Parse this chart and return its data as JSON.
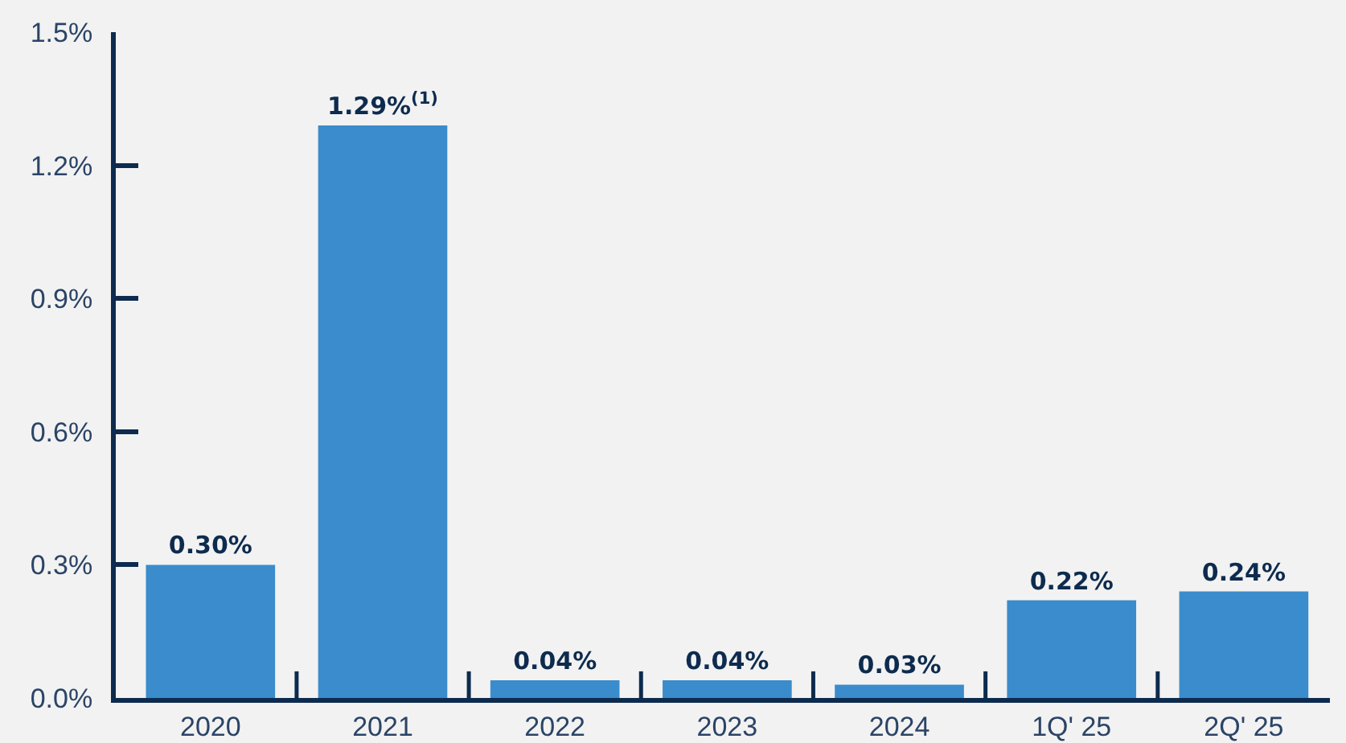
{
  "chart_data": {
    "type": "bar",
    "categories": [
      "2020",
      "2021",
      "2022",
      "2023",
      "2024",
      "1Q' 25",
      "2Q' 25"
    ],
    "values": [
      0.3,
      1.29,
      0.04,
      0.04,
      0.03,
      0.22,
      0.24
    ],
    "value_labels": [
      "0.30%",
      "1.29%$^{(1)}$",
      "0.04%",
      "0.04%",
      "0.03%",
      "0.22%",
      "0.24%"
    ],
    "color": "#3a8ccc",
    "ylim": [
      0,
      1.5
    ],
    "yticks": [
      {
        "value": 0,
        "label": "0.0%"
      },
      {
        "value": 0.3,
        "label": "0.3%"
      },
      {
        "value": 0.6,
        "label": "0.6%"
      },
      {
        "value": 0.9,
        "label": "0.9%"
      },
      {
        "value": 1.2,
        "label": "1.2%"
      },
      {
        "value": 1.5,
        "label": "1.5%"
      }
    ],
    "grid": false
  }
}
